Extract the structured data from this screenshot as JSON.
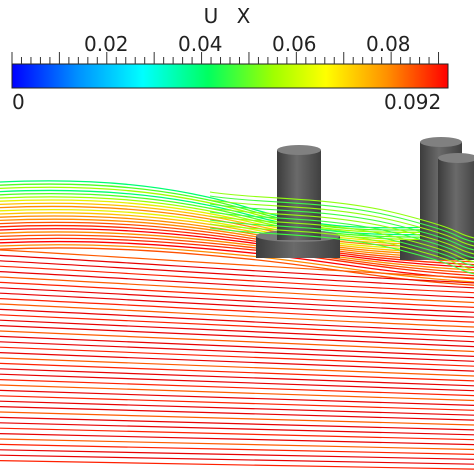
{
  "legend": {
    "title": "U X",
    "ticks": [
      "0.02",
      "0.04",
      "0.06",
      "0.08"
    ],
    "min_label": "0",
    "max_label": "0.092",
    "min_value": 0,
    "max_value": 0.092,
    "colormap": [
      "#0000ff",
      "#00a0ff",
      "#00ffff",
      "#00ff60",
      "#a0ff00",
      "#ffff00",
      "#ff9000",
      "#ff0000"
    ]
  },
  "scene": {
    "background": "#ffffff",
    "cylinder_color": "#5a5a5a",
    "streamline_count_description": "streamlines"
  }
}
